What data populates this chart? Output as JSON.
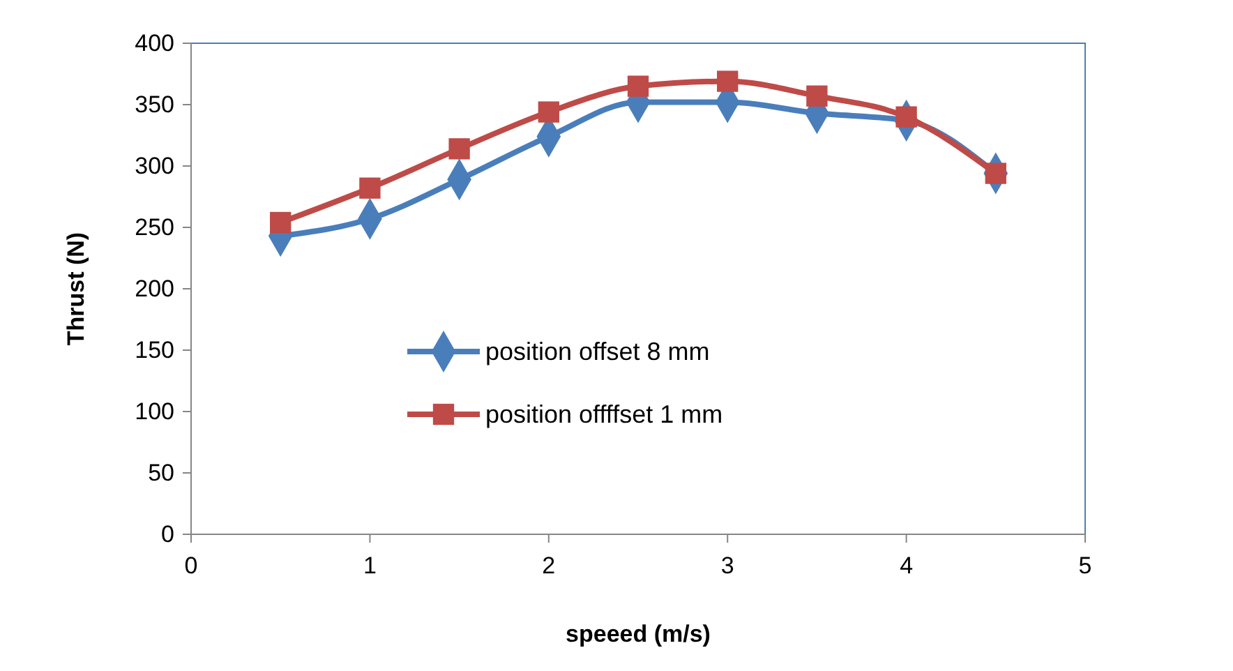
{
  "chart_data": {
    "type": "line",
    "xlabel": "speeed (m/s)",
    "ylabel": "Thrust (N)",
    "x": [
      0.5,
      1,
      1.5,
      2,
      2.5,
      3,
      3.5,
      4,
      4.5
    ],
    "series": [
      {
        "name": "position offset 8 mm",
        "color": "#4a7ebb",
        "marker": "diamond",
        "values": [
          243,
          257,
          289,
          324,
          352,
          352,
          343,
          337,
          294
        ]
      },
      {
        "name": "position offffset 1 mm",
        "color": "#be4b48",
        "marker": "square",
        "values": [
          254,
          282,
          314,
          344,
          365,
          369,
          357,
          340,
          294
        ]
      }
    ],
    "xlim": [
      0,
      5
    ],
    "xticks": [
      0,
      1,
      2,
      3,
      4,
      5
    ],
    "ylim": [
      0,
      400
    ],
    "yticks": [
      0,
      50,
      100,
      150,
      200,
      250,
      300,
      350,
      400
    ],
    "grid": false,
    "legend": "center",
    "line_style": "solid"
  }
}
